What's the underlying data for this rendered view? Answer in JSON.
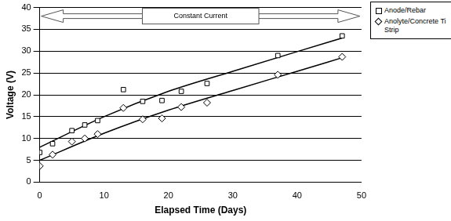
{
  "chart_data": {
    "type": "scatter",
    "x_label": "Elapsed Time (Days)",
    "y_label": "Voltage (V)",
    "annotations": [
      "Constant Current"
    ],
    "xlim": [
      0,
      50
    ],
    "xticks": [
      0,
      10,
      20,
      30,
      40,
      50
    ],
    "ylim": [
      0,
      40
    ],
    "yticks": [
      0,
      5,
      10,
      15,
      20,
      25,
      30,
      35,
      40
    ],
    "grid": "y",
    "legend": "right",
    "series": [
      {
        "name": "Anode/Rebar",
        "color": "#000000",
        "marker": "square",
        "x": [
          0,
          2,
          5,
          7,
          9,
          13,
          16,
          19,
          22,
          26,
          37,
          47
        ],
        "values": [
          6.8,
          8.8,
          11.8,
          13.1,
          14.1,
          21.2,
          18.5,
          18.7,
          20.8,
          22.6,
          29,
          33.5
        ],
        "trend": {
          "x": [
            0,
            10,
            20,
            30,
            40,
            47
          ],
          "values": [
            8,
            15,
            20.8,
            25.4,
            29.9,
            33
          ]
        }
      },
      {
        "name": "Anolyte/Concrete Ti Strip",
        "color": "#000000",
        "marker": "diamond",
        "x": [
          0,
          2,
          5,
          7,
          9,
          13,
          16,
          19,
          22,
          26,
          37,
          47
        ],
        "values": [
          3.7,
          6.3,
          9.3,
          10,
          11,
          17,
          14.4,
          14.6,
          17.2,
          18.2,
          24.6,
          28.7
        ],
        "trend": {
          "x": [
            0,
            10,
            20,
            30,
            40,
            47
          ],
          "values": [
            5,
            11.2,
            16.5,
            21,
            25.4,
            28.5
          ]
        }
      }
    ]
  }
}
